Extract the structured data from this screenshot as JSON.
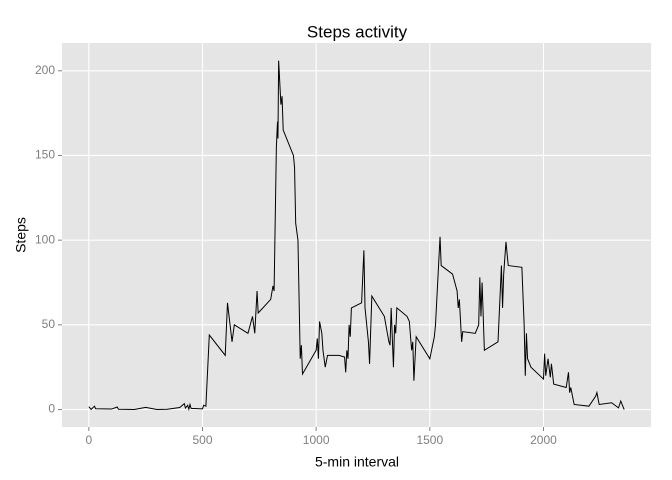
{
  "chart_data": {
    "type": "line",
    "title": "Steps activity",
    "xlabel": "5-min interval",
    "ylabel": "Steps",
    "x": [
      0,
      10,
      25,
      30,
      100,
      125,
      130,
      200,
      250,
      300,
      345,
      400,
      420,
      425,
      435,
      440,
      445,
      450,
      500,
      505,
      515,
      530,
      600,
      610,
      630,
      640,
      700,
      720,
      730,
      740,
      745,
      800,
      810,
      815,
      825,
      830,
      832,
      835,
      845,
      850,
      855,
      900,
      905,
      910,
      920,
      930,
      935,
      940,
      1000,
      1005,
      1010,
      1015,
      1025,
      1030,
      1040,
      1050,
      1100,
      1125,
      1130,
      1135,
      1140,
      1145,
      1150,
      1155,
      1200,
      1210,
      1215,
      1230,
      1235,
      1245,
      1300,
      1320,
      1325,
      1330,
      1340,
      1345,
      1350,
      1355,
      1400,
      1410,
      1420,
      1425,
      1430,
      1440,
      1500,
      1520,
      1525,
      1545,
      1550,
      1600,
      1620,
      1625,
      1630,
      1640,
      1645,
      1700,
      1715,
      1720,
      1725,
      1730,
      1740,
      1800,
      1815,
      1820,
      1825,
      1835,
      1845,
      1905,
      1915,
      1920,
      1925,
      1930,
      1945,
      2000,
      2005,
      2010,
      2020,
      2030,
      2035,
      2045,
      2100,
      2110,
      2115,
      2120,
      2135,
      2200,
      2230,
      2235,
      2245,
      2300,
      2330,
      2340,
      2355
    ],
    "series": [
      {
        "name": "Steps",
        "color": "#000000",
        "values": [
          1.7,
          0.1,
          2,
          0.5,
          0.3,
          1.5,
          0.2,
          0,
          1.3,
          0,
          0.2,
          1.2,
          3.5,
          0.9,
          2.5,
          0.2,
          3,
          0.7,
          0.4,
          2.5,
          2,
          44,
          32,
          63,
          40,
          50,
          45,
          55,
          45,
          70,
          57,
          65,
          73,
          70,
          155,
          170,
          160,
          206,
          180,
          185,
          165,
          150,
          143,
          110,
          100,
          30,
          38,
          21,
          35,
          42,
          30,
          52,
          45,
          35,
          25,
          32,
          32,
          31,
          22,
          35,
          30,
          50,
          43,
          60,
          63,
          94,
          60,
          40,
          27,
          67,
          55,
          40,
          38,
          60,
          25,
          50,
          45,
          60,
          55,
          52,
          35,
          40,
          17,
          43,
          30,
          43,
          50,
          102,
          85,
          80,
          70,
          60,
          65,
          40,
          46,
          45,
          50,
          78,
          55,
          75,
          35,
          40,
          85,
          60,
          80,
          99,
          85,
          84,
          50,
          20,
          45,
          30,
          25,
          18,
          33,
          20,
          30,
          19,
          27,
          15,
          13,
          22,
          10,
          13,
          3,
          2,
          8,
          10,
          3,
          4,
          1,
          5,
          0
        ]
      }
    ],
    "xlim": [
      -118,
      2473
    ],
    "ylim": [
      -10.3,
      216.4
    ],
    "xticks": [
      0,
      500,
      1000,
      1500,
      2000
    ],
    "yticks": [
      0,
      50,
      100,
      150,
      200
    ],
    "grid": true
  }
}
